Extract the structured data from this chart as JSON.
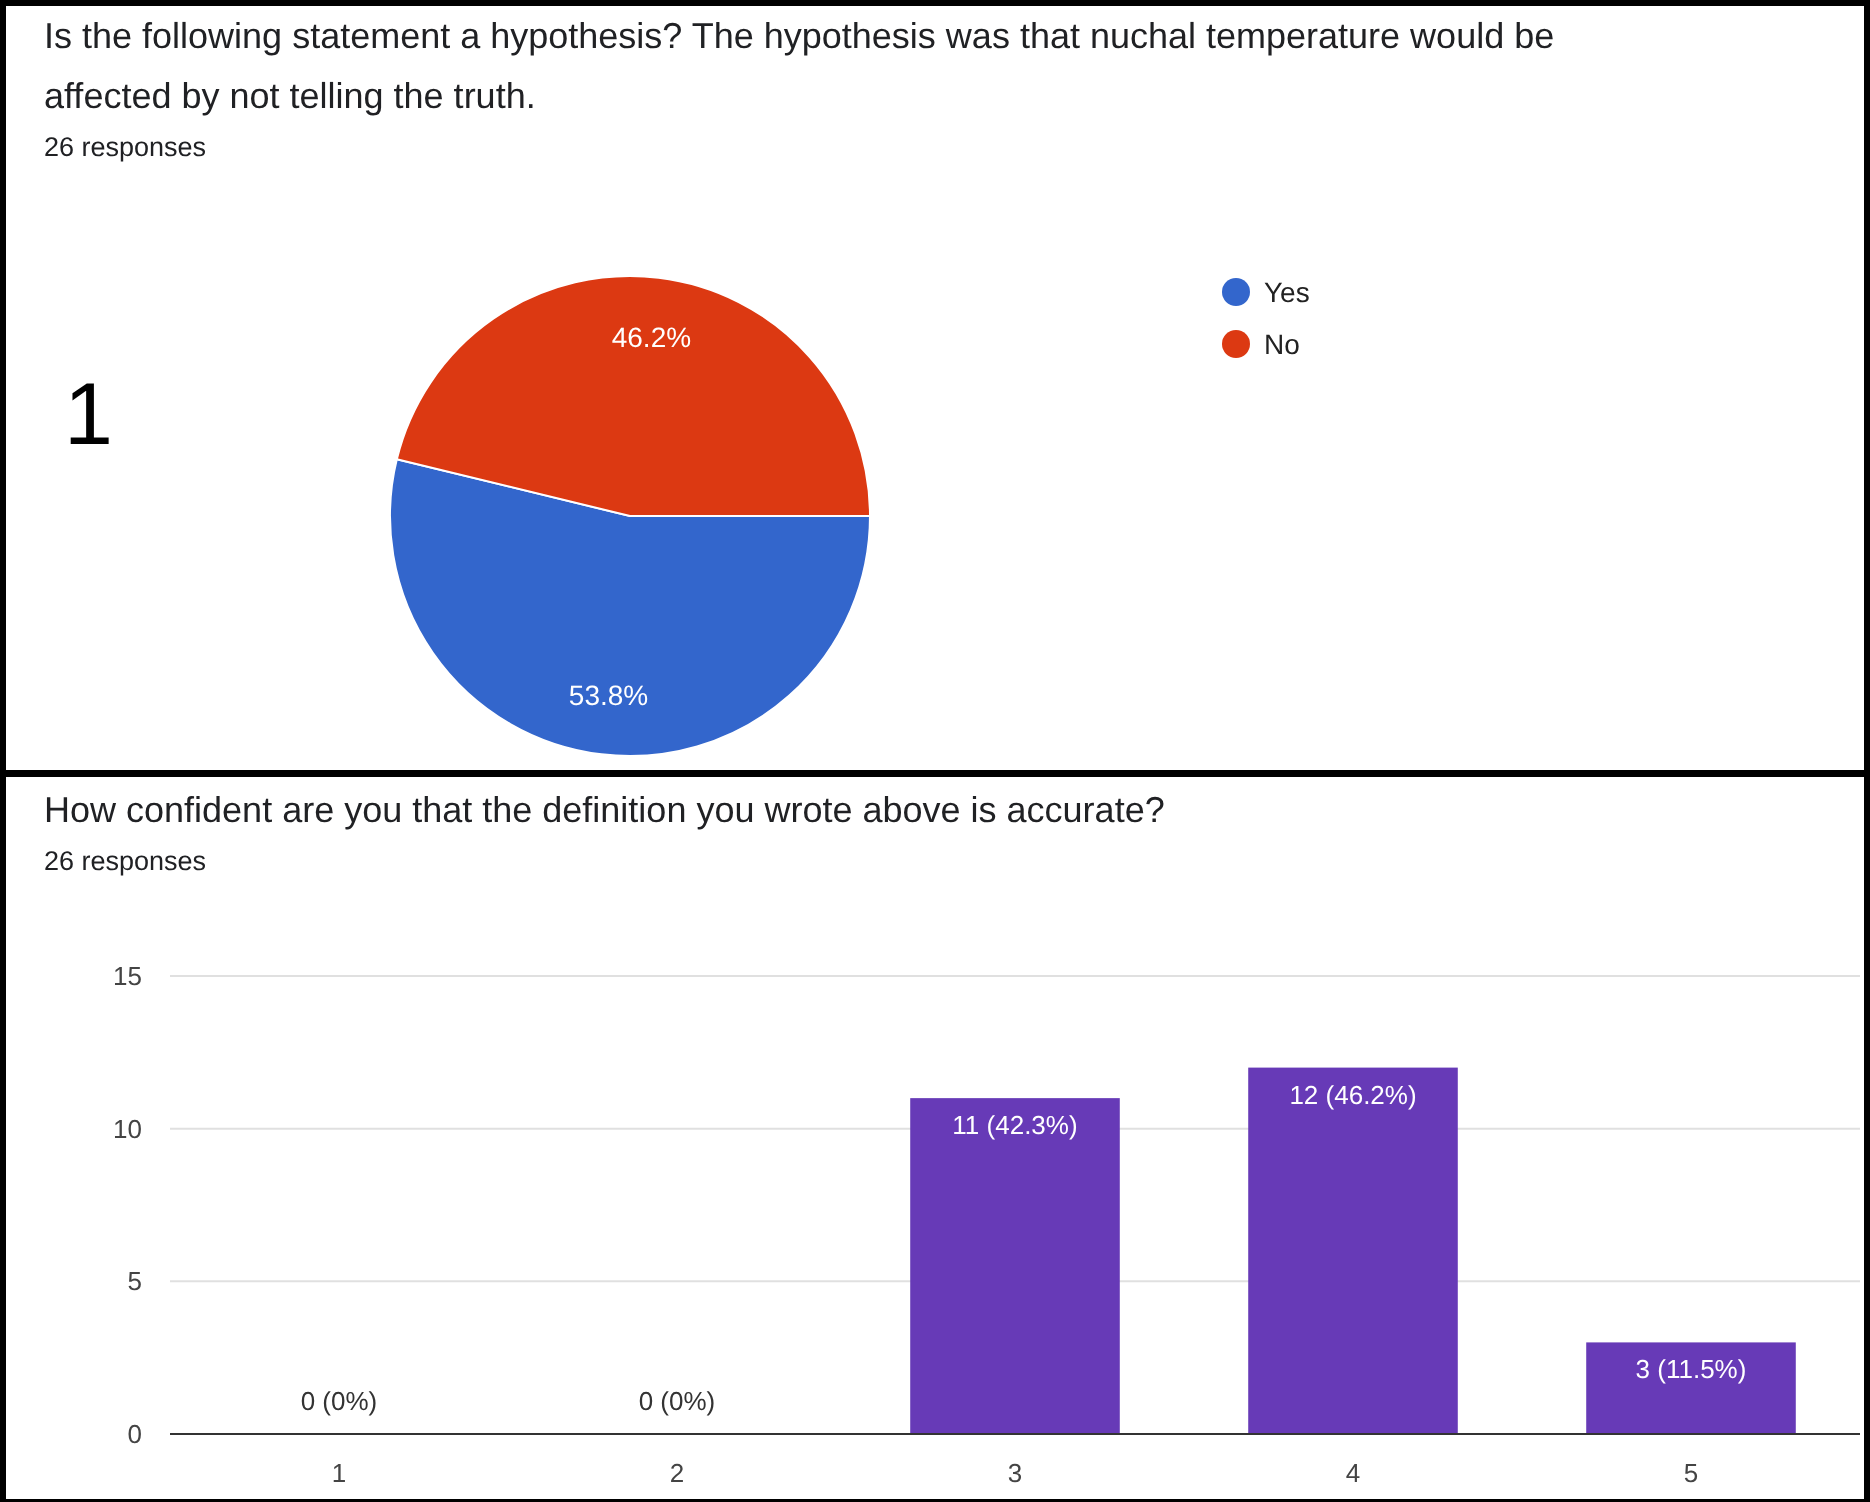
{
  "chart_data": [
    {
      "type": "pie",
      "title": "Is the following statement a hypothesis? The hypothesis was that nuchal temperature would be affected by not telling the truth.",
      "subtitle": "26 responses",
      "annotations": [
        "1"
      ],
      "categories": [
        "Yes",
        "No"
      ],
      "values": [
        53.8,
        46.2
      ],
      "colors": [
        "#3366cc",
        "#dc3912"
      ],
      "value_labels": [
        "53.8%",
        "46.2%"
      ],
      "legend": "right"
    },
    {
      "type": "bar",
      "title": "How confident are you that the definition you wrote above is accurate?",
      "subtitle": "26 responses",
      "categories": [
        "1",
        "2",
        "3",
        "4",
        "5"
      ],
      "values": [
        0,
        0,
        11,
        12,
        3
      ],
      "color": "#673ab7",
      "value_labels": [
        "0 (0%)",
        "0 (0%)",
        "11 (42.3%)",
        "12 (46.2%)",
        "3 (11.5%)"
      ],
      "ylim": [
        0,
        15
      ],
      "yticks": [
        0,
        5,
        10,
        15
      ],
      "grid": "y"
    }
  ]
}
